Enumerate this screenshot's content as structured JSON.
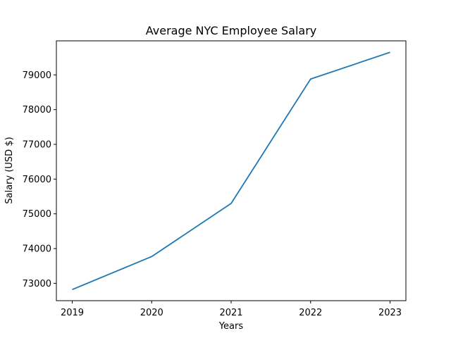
{
  "chart_data": {
    "type": "line",
    "title": "Average NYC Employee Salary",
    "xlabel": "Years",
    "ylabel": "Salary (USD $)",
    "x": [
      "2019",
      "2020",
      "2021",
      "2022",
      "2023"
    ],
    "series": [
      {
        "values": [
          72820,
          73770,
          75300,
          78880,
          79650
        ]
      }
    ],
    "y_ticks": [
      73000,
      74000,
      75000,
      76000,
      77000,
      78000,
      79000
    ],
    "y_tick_labels": [
      "73000",
      "74000",
      "75000",
      "76000",
      "77000",
      "78000",
      "79000"
    ],
    "ylim": [
      72500,
      79980
    ],
    "grid": false,
    "legend": "none",
    "colors": {
      "series": "#1f77b4"
    }
  }
}
